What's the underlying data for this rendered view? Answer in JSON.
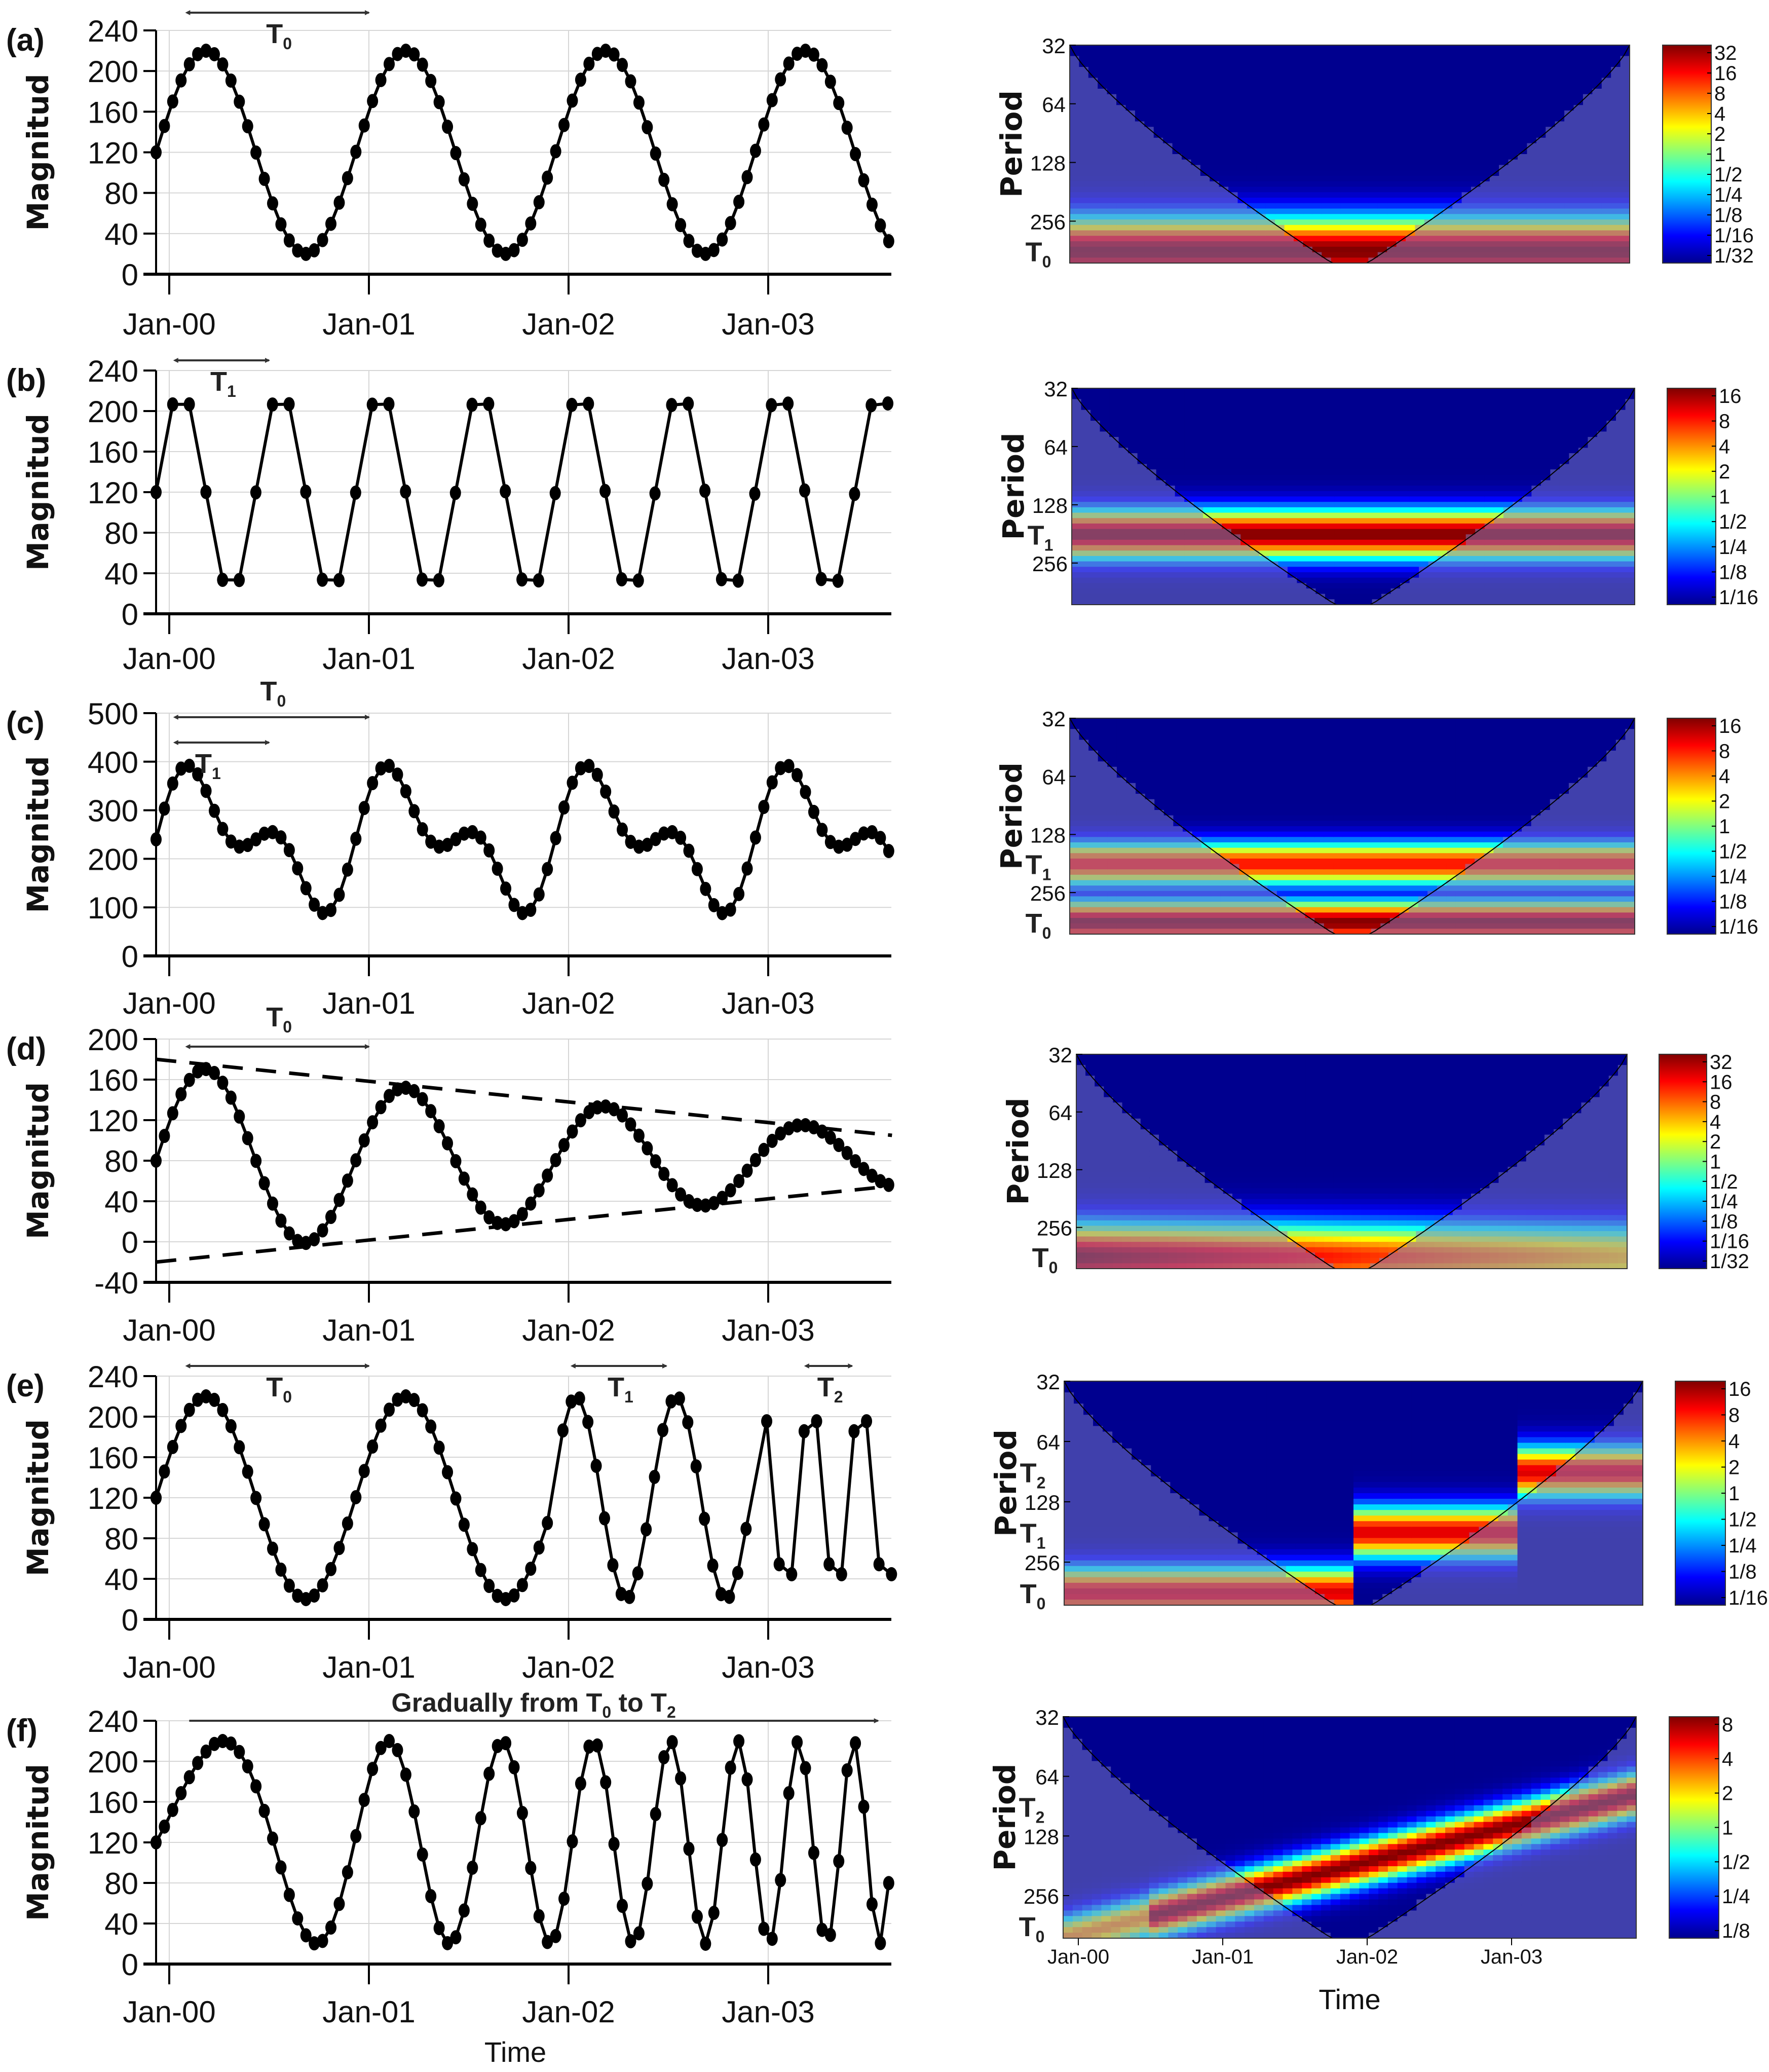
{
  "figure": {
    "x_tick_labels": [
      "Jan-00",
      "Jan-01",
      "Jan-02",
      "Jan-03"
    ],
    "left_ylabel": "Magnitud",
    "right_ylabel": "Period",
    "xlabel": "Time",
    "period_ticks": [
      "32",
      "64",
      "128",
      "256"
    ]
  },
  "chart_data": [
    {
      "panel": "(a)",
      "type": "line",
      "title": "",
      "xlabel": "",
      "ylabel": "Magnitud",
      "x_unit": "years from Jan-00",
      "xlim": [
        -0.066,
        3.62
      ],
      "ylim": [
        0,
        240
      ],
      "yticks": [
        0,
        40,
        80,
        120,
        160,
        200,
        240
      ],
      "grid": true,
      "markers": "filled circles",
      "sample_step_years": 0.0417,
      "model": {
        "kind": "sine",
        "offset": 120,
        "amplitude": 100,
        "periods": [
          {
            "from": -0.066,
            "to": 3.62,
            "period_years": 1.0
          }
        ],
        "phase_zero_at": -0.066
      },
      "annotations": [
        {
          "label": "T",
          "sub": "0",
          "arrow_from": 0.1,
          "arrow_to": 1.0
        }
      ],
      "key_points": [
        {
          "x": -0.066,
          "y": 120
        },
        {
          "x": 0.18,
          "y": 220
        },
        {
          "x": 0.68,
          "y": 20
        },
        {
          "x": 1.18,
          "y": 220
        },
        {
          "x": 1.68,
          "y": 20
        },
        {
          "x": 2.18,
          "y": 220
        },
        {
          "x": 2.68,
          "y": 20
        },
        {
          "x": 3.18,
          "y": 220
        },
        {
          "x": 3.62,
          "y": 25
        }
      ]
    },
    {
      "panel": "(b)",
      "type": "line",
      "xlabel": "",
      "ylabel": "Magnitud",
      "xlim": [
        -0.066,
        3.62
      ],
      "ylim": [
        0,
        240
      ],
      "yticks": [
        0,
        40,
        80,
        120,
        160,
        200,
        240
      ],
      "grid": true,
      "markers": "filled circles",
      "sample_step_years": 0.0833,
      "model": {
        "kind": "sine",
        "offset": 120,
        "amplitude": 100,
        "periods": [
          {
            "from": -0.066,
            "to": 3.62,
            "period_years": 0.5
          }
        ],
        "phase_zero_at": -0.066
      },
      "annotations": [
        {
          "label": "T",
          "sub": "1",
          "arrow_from": 0.04,
          "arrow_to": 0.5
        }
      ],
      "key_points": [
        {
          "x": 0.06,
          "y": 220
        },
        {
          "x": 0.31,
          "y": 20
        },
        {
          "x": 0.56,
          "y": 220
        },
        {
          "x": 3.62,
          "y": 120
        }
      ]
    },
    {
      "panel": "(c)",
      "type": "line",
      "xlabel": "",
      "ylabel": "Magnitud",
      "xlim": [
        -0.066,
        3.62
      ],
      "ylim": [
        0,
        500
      ],
      "yticks": [
        0,
        100,
        200,
        300,
        400,
        500
      ],
      "grid": true,
      "markers": "filled circles",
      "sample_step_years": 0.0417,
      "model": {
        "kind": "sum_of_sines",
        "offset": 240,
        "components": [
          {
            "amplitude": 100,
            "period_years": 1.0
          },
          {
            "amplitude": 75,
            "period_years": 0.5
          }
        ],
        "phase_zero_at": -0.066
      },
      "annotations": [
        {
          "label": "T",
          "sub": "0",
          "arrow_from": 0.04,
          "arrow_to": 1.0
        },
        {
          "label": "T",
          "sub": "1",
          "arrow_from": 0.04,
          "arrow_to": 0.5
        }
      ],
      "key_points": [
        {
          "x": -0.066,
          "y": 240
        },
        {
          "x": 0.07,
          "y": 410
        },
        {
          "x": 0.33,
          "y": 205
        },
        {
          "x": 0.5,
          "y": 285
        },
        {
          "x": 0.77,
          "y": 60
        },
        {
          "x": 1.07,
          "y": 408
        },
        {
          "x": 1.77,
          "y": 58
        },
        {
          "x": 2.07,
          "y": 400
        },
        {
          "x": 2.77,
          "y": 55
        },
        {
          "x": 3.07,
          "y": 395
        },
        {
          "x": 3.5,
          "y": 305
        },
        {
          "x": 3.62,
          "y": 145
        }
      ]
    },
    {
      "panel": "(d)",
      "type": "line",
      "xlabel": "",
      "ylabel": "Magnitud",
      "xlim": [
        -0.066,
        3.62
      ],
      "ylim": [
        -40,
        200
      ],
      "yticks": [
        -40,
        0,
        40,
        80,
        120,
        160,
        200
      ],
      "grid": true,
      "markers": "filled circles",
      "sample_step_years": 0.0417,
      "model": {
        "kind": "damped_sine",
        "start_offset": 80,
        "start_amplitude": 95,
        "end_offset": 80,
        "end_amplitude": 27,
        "period_years": 1.0,
        "phase_zero_at": -0.066
      },
      "envelope": [
        {
          "name": "upper",
          "style": "dashed",
          "from": [
            -0.066,
            180
          ],
          "to": [
            3.62,
            105
          ]
        },
        {
          "name": "lower",
          "style": "dashed",
          "from": [
            -0.066,
            -20
          ],
          "to": [
            3.62,
            55
          ]
        }
      ],
      "annotations": [
        {
          "label": "T",
          "sub": "0",
          "arrow_from": 0.1,
          "arrow_to": 1.0
        }
      ],
      "key_points": [
        {
          "x": -0.066,
          "y": 80
        },
        {
          "x": 0.18,
          "y": 172
        },
        {
          "x": 0.68,
          "y": 2
        },
        {
          "x": 1.18,
          "y": 143
        },
        {
          "x": 1.68,
          "y": 27
        },
        {
          "x": 2.18,
          "y": 124
        },
        {
          "x": 2.68,
          "y": 43
        },
        {
          "x": 3.18,
          "y": 110
        },
        {
          "x": 3.62,
          "y": 55
        }
      ]
    },
    {
      "panel": "(e)",
      "type": "line",
      "xlabel": "",
      "ylabel": "Magnitud",
      "xlim": [
        -0.066,
        3.62
      ],
      "ylim": [
        0,
        240
      ],
      "yticks": [
        0,
        40,
        80,
        120,
        160,
        200,
        240
      ],
      "grid": true,
      "markers": "filled circles",
      "model": {
        "kind": "piecewise_sine",
        "offset": 120,
        "amplitude": 100,
        "segments": [
          {
            "from": -0.066,
            "to": 1.93,
            "period_years": 1.0,
            "step": 0.0417
          },
          {
            "from": 1.93,
            "to": 2.93,
            "period_years": 0.5,
            "step": 0.0417
          },
          {
            "from": 2.93,
            "to": 3.62,
            "period_years": 0.25,
            "step": 0.0625
          }
        ]
      },
      "annotations": [
        {
          "label": "T",
          "sub": "0",
          "arrow_from": 0.1,
          "arrow_to": 1.0
        },
        {
          "label": "T",
          "sub": "1",
          "arrow_from": 2.03,
          "arrow_to": 2.49
        },
        {
          "label": "T",
          "sub": "2",
          "arrow_from": 3.2,
          "arrow_to": 3.42
        }
      ]
    },
    {
      "panel": "(f)",
      "type": "line",
      "xlabel": "Time",
      "ylabel": "Magnitud",
      "xlim": [
        -0.066,
        3.62
      ],
      "ylim": [
        0,
        240
      ],
      "yticks": [
        0,
        40,
        80,
        120,
        160,
        200,
        240
      ],
      "grid": true,
      "markers": "filled circles",
      "sample_step_years": 0.0417,
      "model": {
        "kind": "chirp",
        "offset": 120,
        "amplitude": 100,
        "start_period_years": 2.0,
        "end_period_years": 0.25,
        "phase_zero_at": -0.066
      },
      "annotations": [
        {
          "label": "Gradually from T",
          "sub": "0",
          "label2": " to T",
          "sub2": "2",
          "arrow_from": 0.1,
          "arrow_to": 3.55,
          "one_sided": true
        }
      ]
    },
    {
      "panel": "(a)",
      "type": "heatmap",
      "title": "wavelet power spectrum",
      "ylabel": "Period",
      "yticks": [
        "32",
        "64",
        "128",
        "256"
      ],
      "extra_ylabels": [
        {
          "label": "T",
          "sub": "0",
          "period": 365
        }
      ],
      "colorbar_ticks": [
        "32",
        "16",
        "8",
        "4",
        "2",
        "1",
        "1/2",
        "1/4",
        "1/8",
        "1/16",
        "1/32"
      ],
      "ridge_period": 365,
      "ridge_power": "max",
      "cone_of_influence": true,
      "description": "single high-power band at T0 (~365) confined inside cone; low power at shorter periods"
    },
    {
      "panel": "(b)",
      "type": "heatmap",
      "ylabel": "Period",
      "yticks": [
        "32",
        "64",
        "128",
        "256"
      ],
      "extra_ylabels": [
        {
          "label": "T",
          "sub": "1",
          "period": 182
        }
      ],
      "colorbar_ticks": [
        "16",
        "8",
        "4",
        "2",
        "1",
        "1/2",
        "1/4",
        "1/8",
        "1/16"
      ],
      "ridge_period": 182,
      "cone_of_influence": true,
      "description": "horizontal high-power band at T1 (~182) across full time range"
    },
    {
      "panel": "(c)",
      "type": "heatmap",
      "ylabel": "Period",
      "yticks": [
        "32",
        "64",
        "128",
        "256"
      ],
      "extra_ylabels": [
        {
          "label": "T",
          "sub": "1",
          "period": 182
        },
        {
          "label": "T",
          "sub": "0",
          "period": 365
        }
      ],
      "colorbar_ticks": [
        "16",
        "8",
        "4",
        "2",
        "1",
        "1/2",
        "1/4",
        "1/8",
        "1/16"
      ],
      "ridge_periods": [
        182,
        365
      ],
      "cone_of_influence": true,
      "description": "two bands at T1 and T0, separated by low-power gap near 256"
    },
    {
      "panel": "(d)",
      "type": "heatmap",
      "ylabel": "Period",
      "yticks": [
        "32",
        "64",
        "128",
        "256"
      ],
      "extra_ylabels": [
        {
          "label": "T",
          "sub": "0",
          "period": 365
        }
      ],
      "colorbar_ticks": [
        "32",
        "16",
        "8",
        "4",
        "2",
        "1",
        "1/2",
        "1/4",
        "1/8",
        "1/16",
        "1/32"
      ],
      "ridge_period": 365,
      "cone_of_influence": true,
      "description": "single band at T0 with decreasing power over time"
    },
    {
      "panel": "(e)",
      "type": "heatmap",
      "ylabel": "Period",
      "yticks": [
        "32",
        "64",
        "128",
        "256"
      ],
      "extra_ylabels": [
        {
          "label": "T",
          "sub": "2",
          "period": 91
        },
        {
          "label": "T",
          "sub": "1",
          "period": 182
        },
        {
          "label": "T",
          "sub": "0",
          "period": 365
        }
      ],
      "colorbar_ticks": [
        "16",
        "8",
        "4",
        "2",
        "1",
        "1/2",
        "1/4",
        "1/8",
        "1/16"
      ],
      "cone_of_influence": true,
      "description": "stepwise band moving from T0 to T1 to T2 over time"
    },
    {
      "panel": "(f)",
      "type": "heatmap",
      "xlabel": "Time",
      "xticks": [
        "Jan-00",
        "Jan-01",
        "Jan-02",
        "Jan-03"
      ],
      "ylabel": "Period",
      "yticks": [
        "32",
        "64",
        "128",
        "256"
      ],
      "extra_ylabels": [
        {
          "label": "T",
          "sub": "2",
          "period": 91
        },
        {
          "label": "T",
          "sub": "0",
          "period": 365
        }
      ],
      "colorbar_ticks": [
        "8",
        "4",
        "2",
        "1",
        "1/2",
        "1/4",
        "1/8"
      ],
      "cone_of_influence": true,
      "description": "diagonal band gradually shifting from T0 to T2"
    }
  ]
}
